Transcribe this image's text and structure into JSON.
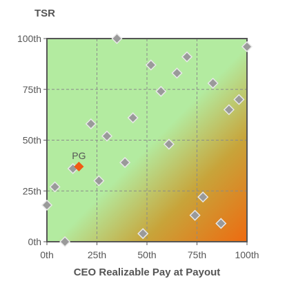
{
  "chart_data": {
    "type": "scatter",
    "ylabel": "TSR",
    "xlabel": "CEO Realizable Pay at Payout",
    "x_ticks": [
      "0th",
      "25th",
      "50th",
      "75th",
      "100th"
    ],
    "y_ticks": [
      "0th",
      "25th",
      "50th",
      "75th",
      "100th"
    ],
    "xlim": [
      0,
      100
    ],
    "ylim": [
      0,
      100
    ],
    "grid": true,
    "background_gradient": {
      "favorable_color": "#b3eba0",
      "mid_color": "#c8a43a",
      "unfavorable_color": "#ee6a10",
      "direction": "bottom-right"
    },
    "colors": {
      "peer_marker": "#9a9a9a",
      "peer_marker_stroke": "#e8e8e8",
      "company_marker": "#f05a14",
      "grid": "#8a8a8a",
      "frame": "#555555",
      "label": "#555555"
    },
    "series": [
      {
        "points": [
          {
            "x": 0,
            "y": 18
          },
          {
            "x": 4,
            "y": 27
          },
          {
            "x": 9,
            "y": 0
          },
          {
            "x": 13,
            "y": 36
          },
          {
            "x": 22,
            "y": 58
          },
          {
            "x": 26,
            "y": 30
          },
          {
            "x": 30,
            "y": 52
          },
          {
            "x": 35,
            "y": 100
          },
          {
            "x": 39,
            "y": 39
          },
          {
            "x": 43,
            "y": 61
          },
          {
            "x": 48,
            "y": 4
          },
          {
            "x": 52,
            "y": 87
          },
          {
            "x": 57,
            "y": 74
          },
          {
            "x": 61,
            "y": 48
          },
          {
            "x": 65,
            "y": 83
          },
          {
            "x": 70,
            "y": 91
          },
          {
            "x": 74,
            "y": 13
          },
          {
            "x": 78,
            "y": 22
          },
          {
            "x": 83,
            "y": 78
          },
          {
            "x": 87,
            "y": 9
          },
          {
            "x": 91,
            "y": 65
          },
          {
            "x": 96,
            "y": 70
          },
          {
            "x": 100,
            "y": 96
          }
        ]
      },
      {
        "name": "PG",
        "points": [
          {
            "x": 16,
            "y": 37
          }
        ]
      }
    ]
  }
}
